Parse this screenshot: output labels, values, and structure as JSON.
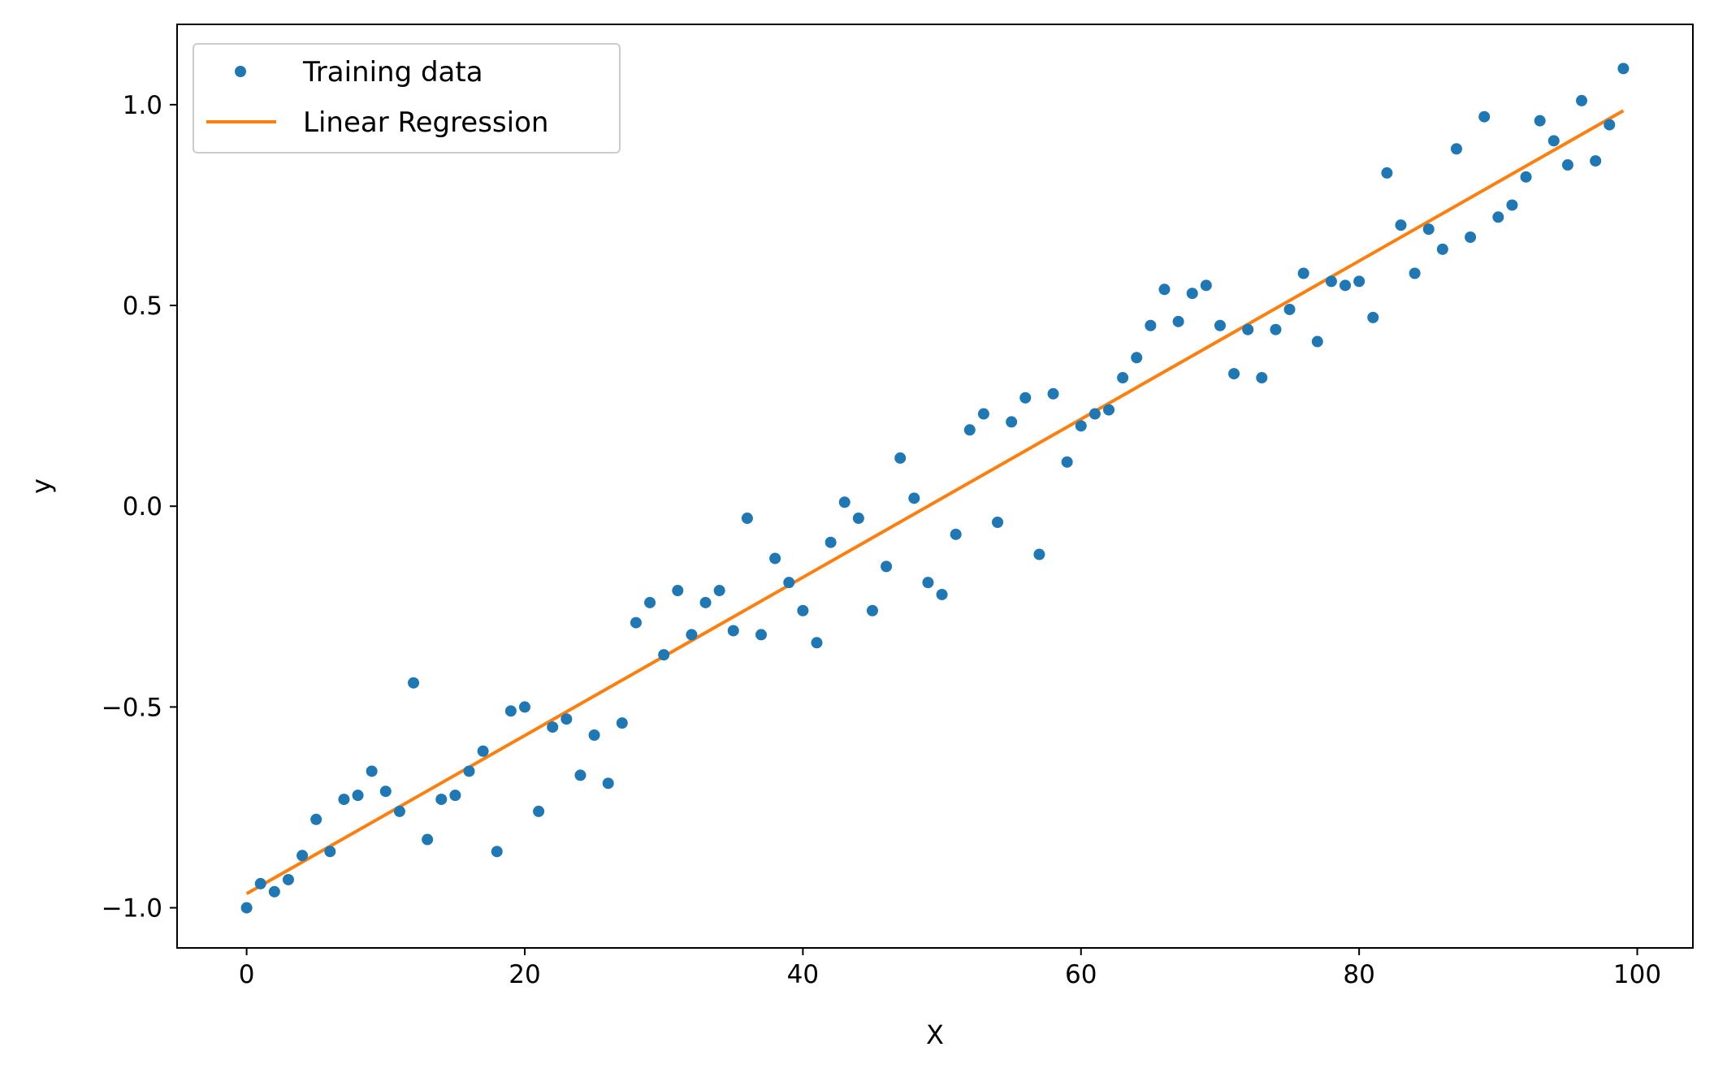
{
  "chart_data": {
    "type": "scatter",
    "xlabel": "X",
    "ylabel": "y",
    "xlim": [
      -5,
      104
    ],
    "ylim": [
      -1.1,
      1.2
    ],
    "xticks": [
      0,
      20,
      40,
      60,
      80,
      100
    ],
    "yticks": [
      -1.0,
      -0.5,
      0.0,
      0.5,
      1.0
    ],
    "xtick_labels": [
      "0",
      "20",
      "40",
      "60",
      "80",
      "100"
    ],
    "ytick_labels": [
      "−1.0",
      "−0.5",
      "0.0",
      "0.5",
      "1.0"
    ],
    "grid": false,
    "legend_position": "top-left",
    "series": [
      {
        "name": "Training data",
        "kind": "scatter",
        "color": "#1f77b4",
        "x": [
          0,
          1,
          2,
          3,
          4,
          5,
          6,
          7,
          8,
          9,
          10,
          11,
          12,
          13,
          14,
          15,
          16,
          17,
          18,
          19,
          20,
          21,
          22,
          23,
          24,
          25,
          26,
          27,
          28,
          29,
          30,
          31,
          32,
          33,
          34,
          35,
          36,
          37,
          38,
          39,
          40,
          41,
          42,
          43,
          44,
          45,
          46,
          47,
          48,
          49,
          50,
          51,
          52,
          53,
          54,
          55,
          56,
          57,
          58,
          59,
          60,
          61,
          62,
          63,
          64,
          65,
          66,
          67,
          68,
          69,
          70,
          71,
          72,
          73,
          74,
          75,
          76,
          77,
          78,
          79,
          80,
          81,
          82,
          83,
          84,
          85,
          86,
          87,
          88,
          89,
          90,
          91,
          92,
          93,
          94,
          95,
          96,
          97,
          98,
          99
        ],
        "y": [
          -1.0,
          -0.94,
          -0.96,
          -0.93,
          -0.87,
          -0.78,
          -0.86,
          -0.73,
          -0.72,
          -0.66,
          -0.71,
          -0.76,
          -0.44,
          -0.83,
          -0.73,
          -0.72,
          -0.66,
          -0.61,
          -0.86,
          -0.51,
          -0.5,
          -0.76,
          -0.55,
          -0.53,
          -0.67,
          -0.57,
          -0.69,
          -0.54,
          -0.29,
          -0.24,
          -0.37,
          -0.21,
          -0.32,
          -0.24,
          -0.21,
          -0.31,
          -0.03,
          -0.32,
          -0.13,
          -0.19,
          -0.26,
          -0.34,
          -0.09,
          0.01,
          -0.03,
          -0.26,
          -0.15,
          0.12,
          0.02,
          -0.19,
          -0.22,
          -0.07,
          0.19,
          0.23,
          -0.04,
          0.21,
          0.27,
          -0.12,
          0.28,
          0.11,
          0.2,
          0.23,
          0.24,
          0.32,
          0.37,
          0.45,
          0.54,
          0.46,
          0.53,
          0.55,
          0.45,
          0.33,
          0.44,
          0.32,
          0.44,
          0.49,
          0.58,
          0.41,
          0.56,
          0.55,
          0.56,
          0.47,
          0.83,
          0.7,
          0.58,
          0.69,
          0.64,
          0.89,
          0.67,
          0.97,
          0.72,
          0.75,
          0.82,
          0.96,
          0.91,
          0.85,
          1.01,
          0.86,
          0.95,
          1.09
        ]
      },
      {
        "name": "Linear Regression",
        "kind": "line",
        "color": "#ff7f0e",
        "x": [
          0,
          99
        ],
        "y": [
          -0.965,
          0.985
        ]
      }
    ]
  }
}
